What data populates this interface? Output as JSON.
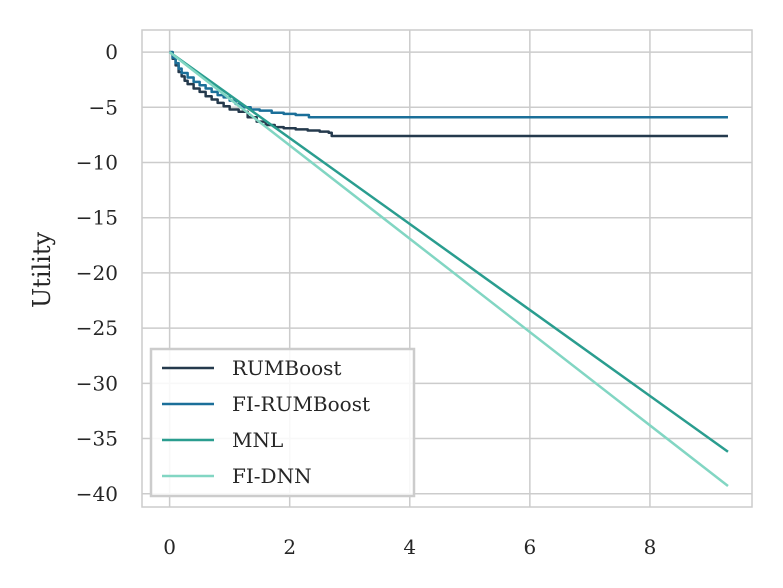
{
  "chart_data": {
    "type": "line",
    "title": "",
    "xlabel": "",
    "ylabel": "Utility",
    "xlim": [
      -0.46,
      9.7
    ],
    "ylim": [
      -41.2,
      2.0
    ],
    "grid": true,
    "legend_placement": "lower-left",
    "x_ticks": [
      0,
      2,
      4,
      6,
      8
    ],
    "y_ticks": [
      0,
      -5,
      -10,
      -15,
      -20,
      -25,
      -30,
      -35,
      -40
    ],
    "x_tick_labels": [
      "0",
      "2",
      "4",
      "6",
      "8"
    ],
    "y_tick_labels": [
      "0",
      "−5",
      "−10",
      "−15",
      "−20",
      "−25",
      "−30",
      "−35",
      "−40"
    ],
    "series": [
      {
        "name": "RUMBoost",
        "color": "#253a4d",
        "step": true,
        "points": [
          [
            0,
            0
          ],
          [
            0.05,
            -0.6
          ],
          [
            0.1,
            -1.2
          ],
          [
            0.15,
            -1.8
          ],
          [
            0.2,
            -2.2
          ],
          [
            0.25,
            -2.6
          ],
          [
            0.3,
            -2.9
          ],
          [
            0.4,
            -3.3
          ],
          [
            0.5,
            -3.6
          ],
          [
            0.6,
            -4.0
          ],
          [
            0.7,
            -4.3
          ],
          [
            0.8,
            -4.6
          ],
          [
            0.9,
            -4.9
          ],
          [
            1.0,
            -5.2
          ],
          [
            1.15,
            -5.4
          ],
          [
            1.3,
            -5.9
          ],
          [
            1.45,
            -6.3
          ],
          [
            1.6,
            -6.6
          ],
          [
            1.75,
            -6.8
          ],
          [
            1.9,
            -6.9
          ],
          [
            2.1,
            -7.0
          ],
          [
            2.3,
            -7.1
          ],
          [
            2.5,
            -7.2
          ],
          [
            2.65,
            -7.3
          ],
          [
            2.7,
            -7.6
          ],
          [
            9.3,
            -7.6
          ]
        ]
      },
      {
        "name": "FI-RUMBoost",
        "color": "#1b6f99",
        "step": true,
        "points": [
          [
            0,
            0
          ],
          [
            0.05,
            -0.5
          ],
          [
            0.1,
            -1.0
          ],
          [
            0.15,
            -1.5
          ],
          [
            0.2,
            -1.9
          ],
          [
            0.3,
            -2.3
          ],
          [
            0.4,
            -2.7
          ],
          [
            0.5,
            -3.0
          ],
          [
            0.6,
            -3.3
          ],
          [
            0.7,
            -3.6
          ],
          [
            0.8,
            -3.9
          ],
          [
            0.9,
            -4.1
          ],
          [
            1.0,
            -4.4
          ],
          [
            1.1,
            -4.7
          ],
          [
            1.2,
            -5.0
          ],
          [
            1.35,
            -5.2
          ],
          [
            1.5,
            -5.3
          ],
          [
            1.7,
            -5.5
          ],
          [
            1.9,
            -5.6
          ],
          [
            2.1,
            -5.7
          ],
          [
            2.3,
            -5.7
          ],
          [
            2.32,
            -5.9
          ],
          [
            9.3,
            -5.9
          ]
        ]
      },
      {
        "name": "MNL",
        "color": "#2a9d8f",
        "step": false,
        "points": [
          [
            0,
            0
          ],
          [
            9.3,
            -36.2
          ]
        ]
      },
      {
        "name": "FI-DNN",
        "color": "#82d6c3",
        "step": false,
        "points": [
          [
            0,
            0
          ],
          [
            9.3,
            -39.3
          ]
        ]
      }
    ]
  }
}
